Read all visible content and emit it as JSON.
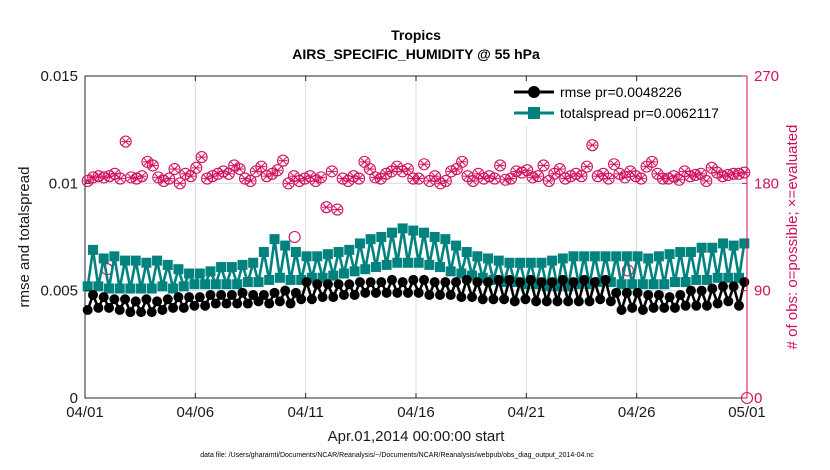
{
  "chart_data": {
    "type": "line",
    "title_line1": "Tropics",
    "title_line2": "AIRS_SPECIFIC_HUMIDITY @ 55 hPa",
    "xlabel": "Apr.01,2014 00:00:00 start",
    "ylabel_left": "rmse and totalspread",
    "ylabel_right": "# of obs: o=possible; ×=evaluated",
    "footer": "data file: /Users/gharamti/Documents/NCAR/Reanalysis/~/Documents/NCAR/Reanalysis/webpub/obs_diag_output_2014-04.nc",
    "xlim": [
      0,
      30
    ],
    "ylim_left": [
      0,
      0.015
    ],
    "ylim_right": [
      0,
      270
    ],
    "x_tick_values": [
      0,
      5,
      10,
      15,
      20,
      25,
      30
    ],
    "x_tick_labels": [
      "04/01",
      "04/06",
      "04/11",
      "04/16",
      "04/21",
      "04/26",
      "05/01"
    ],
    "y_left_tick_values": [
      0,
      0.005,
      0.01,
      0.015
    ],
    "y_left_tick_labels": [
      "0",
      "0.005",
      "0.01",
      "0.015"
    ],
    "y_right_tick_values": [
      0,
      90,
      180,
      270
    ],
    "y_right_tick_labels": [
      "0",
      "90",
      "180",
      "270"
    ],
    "colors": {
      "rmse": "#000000",
      "spread": "#00827f",
      "obs": "#d0105e",
      "grid": "#dcdcdc"
    },
    "series": [
      {
        "name": "rmse",
        "legend": "rmse pr=0.0048226",
        "axis": "left",
        "values": [
          0.0041,
          0.0048,
          0.0042,
          0.0047,
          0.0042,
          0.0046,
          0.0041,
          0.0046,
          0.004,
          0.0045,
          0.004,
          0.0046,
          0.004,
          0.0045,
          0.0041,
          0.0046,
          0.0042,
          0.0047,
          0.0042,
          0.0047,
          0.0043,
          0.0047,
          0.0043,
          0.0048,
          0.0044,
          0.0048,
          0.0044,
          0.0048,
          0.0044,
          0.0049,
          0.0044,
          0.0048,
          0.0045,
          0.0048,
          0.0044,
          0.0049,
          0.0045,
          0.005,
          0.0044,
          0.0049,
          0.0046,
          0.0054,
          0.0046,
          0.0053,
          0.0047,
          0.0053,
          0.0047,
          0.0053,
          0.0048,
          0.0053,
          0.0048,
          0.0054,
          0.0049,
          0.0054,
          0.0049,
          0.0054,
          0.0049,
          0.0055,
          0.0049,
          0.0054,
          0.0049,
          0.0055,
          0.0049,
          0.0055,
          0.0048,
          0.0054,
          0.0048,
          0.0054,
          0.0048,
          0.0054,
          0.0047,
          0.0055,
          0.0047,
          0.0054,
          0.0046,
          0.0054,
          0.0046,
          0.0055,
          0.0046,
          0.0055,
          0.0045,
          0.0054,
          0.0046,
          0.0055,
          0.0045,
          0.0054,
          0.0045,
          0.0054,
          0.0045,
          0.0055,
          0.0045,
          0.0054,
          0.0045,
          0.0055,
          0.0045,
          0.0054,
          0.0046,
          0.0055,
          0.0045,
          0.0049,
          0.0041,
          0.0049,
          0.0042,
          0.0049,
          0.0041,
          0.0048,
          0.0042,
          0.0048,
          0.0042,
          0.0047,
          0.0042,
          0.0048,
          0.0043,
          0.005,
          0.0043,
          0.005,
          0.0043,
          0.0051,
          0.0044,
          0.0052,
          0.0045,
          0.0052,
          0.0043,
          0.0054
        ]
      },
      {
        "name": "totalspread",
        "legend": "totalspread pr=0.0062117",
        "axis": "left",
        "values": [
          0.0052,
          0.0069,
          0.0052,
          0.0065,
          0.0051,
          0.0066,
          0.0051,
          0.0064,
          0.0051,
          0.0064,
          0.0051,
          0.0063,
          0.0051,
          0.0064,
          0.0052,
          0.0062,
          0.0051,
          0.006,
          0.0052,
          0.0058,
          0.0053,
          0.0058,
          0.0053,
          0.0059,
          0.0053,
          0.0061,
          0.0053,
          0.0061,
          0.0053,
          0.0062,
          0.0054,
          0.0063,
          0.0054,
          0.0068,
          0.0055,
          0.0074,
          0.0056,
          0.0071,
          0.0055,
          0.0068,
          0.0055,
          0.0066,
          0.0056,
          0.0066,
          0.0056,
          0.0067,
          0.0057,
          0.0068,
          0.0058,
          0.0069,
          0.0059,
          0.0072,
          0.006,
          0.0074,
          0.0061,
          0.0075,
          0.0062,
          0.0077,
          0.0063,
          0.0079,
          0.0063,
          0.0078,
          0.0063,
          0.0077,
          0.0062,
          0.0075,
          0.0061,
          0.0074,
          0.0059,
          0.0071,
          0.0058,
          0.0068,
          0.0057,
          0.0066,
          0.0056,
          0.0065,
          0.0055,
          0.0064,
          0.0054,
          0.0063,
          0.0054,
          0.0063,
          0.0053,
          0.0063,
          0.0053,
          0.0063,
          0.0052,
          0.0064,
          0.0052,
          0.0065,
          0.0052,
          0.0066,
          0.0053,
          0.0066,
          0.0053,
          0.0066,
          0.0054,
          0.0066,
          0.0054,
          0.0066,
          0.0053,
          0.0066,
          0.0053,
          0.0066,
          0.0053,
          0.0065,
          0.0053,
          0.0066,
          0.0053,
          0.0067,
          0.0054,
          0.0068,
          0.0054,
          0.0068,
          0.0055,
          0.007,
          0.0055,
          0.007,
          0.0056,
          0.0072,
          0.0056,
          0.0071,
          0.0056,
          0.0072
        ]
      },
      {
        "name": "obs_possible",
        "axis": "right",
        "marker": "circle",
        "values": [
          182,
          185,
          186,
          185,
          186,
          188,
          184,
          215,
          185,
          184,
          186,
          198,
          195,
          185,
          182,
          184,
          192,
          180,
          188,
          186,
          193,
          202,
          184,
          186,
          188,
          190,
          188,
          195,
          192,
          184,
          182,
          190,
          194,
          186,
          188,
          191,
          199,
          180,
          186,
          182,
          184,
          186,
          182,
          185,
          160,
          190,
          158,
          184,
          182,
          186,
          184,
          198,
          192,
          185,
          184,
          188,
          190,
          194,
          190,
          192,
          184,
          184,
          196,
          182,
          186,
          180,
          182,
          190,
          192,
          198,
          186,
          182,
          188,
          184,
          186,
          184,
          195,
          183,
          184,
          190,
          189,
          191,
          185,
          186,
          195,
          182,
          188,
          192,
          184,
          186,
          188,
          186,
          194,
          212,
          186,
          188,
          184,
          196,
          188,
          185,
          190,
          186,
          184,
          194,
          198,
          188,
          184,
          184,
          186,
          183,
          190,
          186,
          187,
          188,
          182,
          193,
          189,
          186,
          187,
          188,
          188,
          189
        ]
      },
      {
        "name": "obs_evaluated",
        "axis": "right",
        "marker": "x",
        "values": [
          182,
          185,
          186,
          185,
          186,
          188,
          184,
          215,
          185,
          184,
          186,
          198,
          195,
          185,
          182,
          184,
          192,
          180,
          188,
          186,
          193,
          202,
          184,
          186,
          188,
          190,
          188,
          195,
          192,
          184,
          182,
          190,
          194,
          186,
          188,
          191,
          199,
          180,
          186,
          182,
          184,
          186,
          182,
          185,
          160,
          190,
          158,
          184,
          182,
          186,
          184,
          198,
          192,
          185,
          184,
          188,
          190,
          194,
          190,
          192,
          184,
          184,
          196,
          182,
          186,
          180,
          182,
          190,
          192,
          198,
          186,
          182,
          188,
          184,
          186,
          184,
          195,
          183,
          184,
          190,
          189,
          191,
          185,
          186,
          195,
          182,
          188,
          192,
          184,
          186,
          188,
          186,
          194,
          212,
          186,
          188,
          184,
          196,
          188,
          185,
          190,
          186,
          184,
          194,
          198,
          188,
          184,
          184,
          186,
          183,
          190,
          186,
          187,
          188,
          182,
          193,
          189,
          186,
          187,
          188,
          188,
          189
        ]
      },
      {
        "name": "obs_extra",
        "axis": "right",
        "marker": "circle",
        "x": [
          1,
          9.5,
          24.6,
          30
        ],
        "values": [
          108,
          135,
          107,
          0
        ]
      }
    ]
  }
}
